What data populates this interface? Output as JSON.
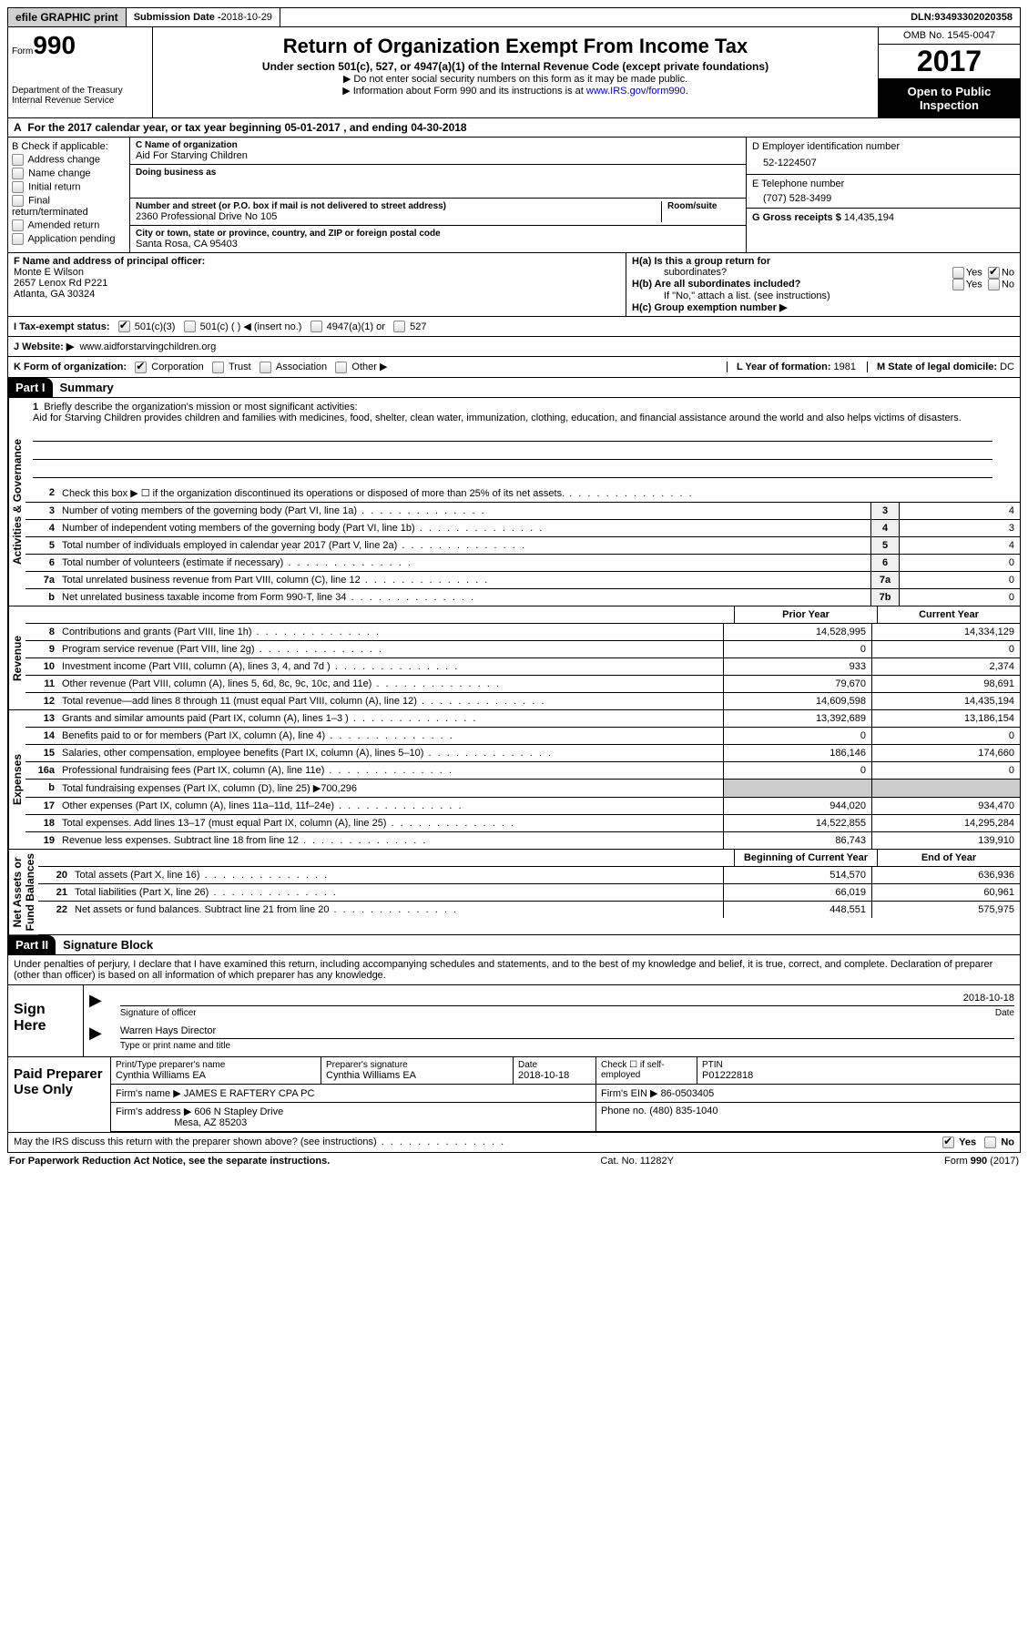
{
  "top": {
    "efile": "efile GRAPHIC print",
    "submission_label": "Submission Date - ",
    "submission_date": "2018-10-29",
    "dln_label": "DLN: ",
    "dln": "93493302020358"
  },
  "header": {
    "form_prefix": "Form",
    "form_no": "990",
    "dept1": "Department of the Treasury",
    "dept2": "Internal Revenue Service",
    "title": "Return of Organization Exempt From Income Tax",
    "subtitle": "Under section 501(c), 527, or 4947(a)(1) of the Internal Revenue Code (except private foundations)",
    "note1": "▶ Do not enter social security numbers on this form as it may be made public.",
    "note2_pre": "▶ Information about Form 990 and its instructions is at ",
    "note2_link": "www.IRS.gov/form990",
    "omb": "OMB No. 1545-0047",
    "year": "2017",
    "open1": "Open to Public",
    "open2": "Inspection"
  },
  "sectionA": {
    "prefix": "A",
    "text1": "For the 2017 calendar year, or tax year beginning ",
    "begin": "05-01-2017",
    "text2": " , and ending ",
    "end": "04-30-2018"
  },
  "colB": {
    "header": "B Check if applicable:",
    "opts": [
      "Address change",
      "Name change",
      "Initial return",
      "Final return/terminated",
      "Amended return",
      "Application pending"
    ]
  },
  "colC": {
    "name_label": "C Name of organization",
    "name": "Aid For Starving Children",
    "dba_label": "Doing business as",
    "dba": "",
    "addr_label": "Number and street (or P.O. box if mail is not delivered to street address)",
    "room_label": "Room/suite",
    "addr": "2360 Professional Drive No 105",
    "city_label": "City or town, state or province, country, and ZIP or foreign postal code",
    "city": "Santa Rosa, CA  95403"
  },
  "colD": {
    "ein_label": "D Employer identification number",
    "ein": "52-1224507",
    "phone_label": "E Telephone number",
    "phone": "(707) 528-3499",
    "gross_label": "G Gross receipts $ ",
    "gross": "14,435,194"
  },
  "rowF": {
    "label": "F  Name and address of principal officer:",
    "name": "Monte E Wilson",
    "addr1": "2657 Lenox Rd P221",
    "addr2": "Atlanta, GA  30324"
  },
  "rowH": {
    "a": "H(a)  Is this a group return for",
    "a2": "subordinates?",
    "b": "H(b)  Are all subordinates included?",
    "b2": "If \"No,\" attach a list. (see instructions)",
    "c": "H(c)  Group exemption number ▶",
    "yes": "Yes",
    "no": "No"
  },
  "rowI": {
    "label": "I  Tax-exempt status:",
    "o1": "501(c)(3)",
    "o2": "501(c) (   ) ◀ (insert no.)",
    "o3": "4947(a)(1) or",
    "o4": "527"
  },
  "rowJ": {
    "label": "J  Website: ▶",
    "url": "www.aidforstarvingchildren.org"
  },
  "rowK": {
    "label": "K Form of organization:",
    "o1": "Corporation",
    "o2": "Trust",
    "o3": "Association",
    "o4": "Other ▶",
    "l_label": "L Year of formation: ",
    "l_val": "1981",
    "m_label": "M State of legal domicile: ",
    "m_val": "DC"
  },
  "part1": {
    "label": "Part I",
    "title": "Summary"
  },
  "part2": {
    "label": "Part II",
    "title": "Signature Block"
  },
  "tabs": {
    "ag": "Activities & Governance",
    "rev": "Revenue",
    "exp": "Expenses",
    "net": "Net Assets or\nFund Balances"
  },
  "mission": {
    "num": "1",
    "label": "Briefly describe the organization's mission or most significant activities:",
    "text": "Aid for Starving Children provides children and families with medicines, food, shelter, clean water, immunization, clothing, education, and financial assistance around the world and also helps victims of disasters."
  },
  "gov_lines": [
    {
      "n": "2",
      "t": "Check this box ▶ ☐  if the organization discontinued its operations or disposed of more than 25% of its net assets."
    },
    {
      "n": "3",
      "t": "Number of voting members of the governing body (Part VI, line 1a)",
      "box": "3",
      "v": "4"
    },
    {
      "n": "4",
      "t": "Number of independent voting members of the governing body (Part VI, line 1b)",
      "box": "4",
      "v": "3"
    },
    {
      "n": "5",
      "t": "Total number of individuals employed in calendar year 2017 (Part V, line 2a)",
      "box": "5",
      "v": "4"
    },
    {
      "n": "6",
      "t": "Total number of volunteers (estimate if necessary)",
      "box": "6",
      "v": "0"
    },
    {
      "n": "7a",
      "t": "Total unrelated business revenue from Part VIII, column (C), line 12",
      "box": "7a",
      "v": "0"
    },
    {
      "n": "b",
      "t": "Net unrelated business taxable income from Form 990-T, line 34",
      "box": "7b",
      "v": "0"
    }
  ],
  "fin_headers": {
    "prior": "Prior Year",
    "current": "Current Year"
  },
  "revenue": [
    {
      "n": "8",
      "t": "Contributions and grants (Part VIII, line 1h)",
      "pv": "14,528,995",
      "cv": "14,334,129"
    },
    {
      "n": "9",
      "t": "Program service revenue (Part VIII, line 2g)",
      "pv": "0",
      "cv": "0"
    },
    {
      "n": "10",
      "t": "Investment income (Part VIII, column (A), lines 3, 4, and 7d )",
      "pv": "933",
      "cv": "2,374"
    },
    {
      "n": "11",
      "t": "Other revenue (Part VIII, column (A), lines 5, 6d, 8c, 9c, 10c, and 11e)",
      "pv": "79,670",
      "cv": "98,691"
    },
    {
      "n": "12",
      "t": "Total revenue—add lines 8 through 11 (must equal Part VIII, column (A), line 12)",
      "pv": "14,609,598",
      "cv": "14,435,194"
    }
  ],
  "expenses": [
    {
      "n": "13",
      "t": "Grants and similar amounts paid (Part IX, column (A), lines 1–3 )",
      "pv": "13,392,689",
      "cv": "13,186,154"
    },
    {
      "n": "14",
      "t": "Benefits paid to or for members (Part IX, column (A), line 4)",
      "pv": "0",
      "cv": "0"
    },
    {
      "n": "15",
      "t": "Salaries, other compensation, employee benefits (Part IX, column (A), lines 5–10)",
      "pv": "186,146",
      "cv": "174,660"
    },
    {
      "n": "16a",
      "t": "Professional fundraising fees (Part IX, column (A), line 11e)",
      "pv": "0",
      "cv": "0"
    },
    {
      "n": "b",
      "t": "Total fundraising expenses (Part IX, column (D), line 25) ▶700,296",
      "shaded": true
    },
    {
      "n": "17",
      "t": "Other expenses (Part IX, column (A), lines 11a–11d, 11f–24e)",
      "pv": "944,020",
      "cv": "934,470"
    },
    {
      "n": "18",
      "t": "Total expenses. Add lines 13–17 (must equal Part IX, column (A), line 25)",
      "pv": "14,522,855",
      "cv": "14,295,284"
    },
    {
      "n": "19",
      "t": "Revenue less expenses. Subtract line 18 from line 12",
      "pv": "86,743",
      "cv": "139,910"
    }
  ],
  "net_headers": {
    "begin": "Beginning of Current Year",
    "end": "End of Year"
  },
  "netassets": [
    {
      "n": "20",
      "t": "Total assets (Part X, line 16)",
      "pv": "514,570",
      "cv": "636,936"
    },
    {
      "n": "21",
      "t": "Total liabilities (Part X, line 26)",
      "pv": "66,019",
      "cv": "60,961"
    },
    {
      "n": "22",
      "t": "Net assets or fund balances. Subtract line 21 from line 20",
      "pv": "448,551",
      "cv": "575,975"
    }
  ],
  "sig_decl": "Under penalties of perjury, I declare that I have examined this return, including accompanying schedules and statements, and to the best of my knowledge and belief, it is true, correct, and complete. Declaration of preparer (other than officer) is based on all information of which preparer has any knowledge.",
  "sign": {
    "here": "Sign Here",
    "sig_label": "Signature of officer",
    "date_label": "Date",
    "date": "2018-10-18",
    "name": "Warren Hays  Director",
    "name_label": "Type or print name and title"
  },
  "prep": {
    "label": "Paid Preparer Use Only",
    "name_label": "Print/Type preparer's name",
    "name": "Cynthia Williams EA",
    "sig_label": "Preparer's signature",
    "sig": "Cynthia Williams EA",
    "date_label": "Date",
    "date": "2018-10-18",
    "check_label": "Check ☐ if self-employed",
    "ptin_label": "PTIN",
    "ptin": "P01222818",
    "firm_name_label": "Firm's name    ▶ ",
    "firm_name": "JAMES E RAFTERY CPA PC",
    "firm_ein_label": "Firm's EIN ▶ ",
    "firm_ein": "86-0503405",
    "firm_addr_label": "Firm's address ▶ ",
    "firm_addr": "606 N Stapley Drive",
    "firm_city": "Mesa, AZ  85203",
    "phone_label": "Phone no. ",
    "phone": "(480) 835-1040"
  },
  "discuss": {
    "text": "May the IRS discuss this return with the preparer shown above? (see instructions)",
    "yes": "Yes",
    "no": "No"
  },
  "footer": {
    "left": "For Paperwork Reduction Act Notice, see the separate instructions.",
    "mid": "Cat. No. 11282Y",
    "right": "Form 990 (2017)"
  }
}
